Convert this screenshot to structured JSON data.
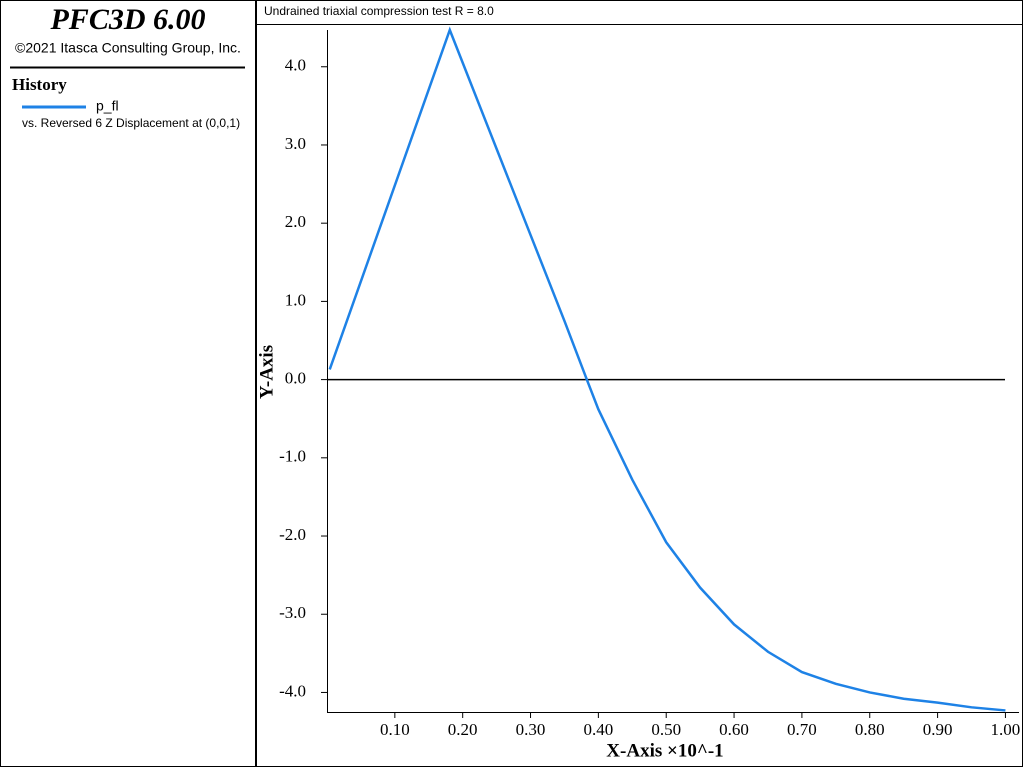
{
  "app": {
    "title": "PFC3D 6.00",
    "copyright": "©2021 Itasca Consulting Group, Inc.",
    "panel_heading": "History"
  },
  "chart_data": {
    "type": "line",
    "title": "Undrained triaxial compression test R = 8.0",
    "x_label": "X-Axis ×10^-1",
    "y_label": "Y-Axis",
    "legend_note": "vs. Reversed 6 Z Displacement at (0,0,1)",
    "x": [
      0.004,
      0.181,
      0.25,
      0.3,
      0.35,
      0.383,
      0.4,
      0.45,
      0.5,
      0.55,
      0.6,
      0.65,
      0.7,
      0.75,
      0.8,
      0.85,
      0.9,
      0.95,
      1.0
    ],
    "series": [
      {
        "name": "p_fl",
        "color": "#1e82e6",
        "values": [
          0.13,
          4.47,
          2.95,
          1.85,
          0.75,
          0.0,
          -0.38,
          -1.28,
          -2.08,
          -2.66,
          -3.13,
          -3.48,
          -3.74,
          -3.89,
          -4.0,
          -4.08,
          -4.13,
          -4.19,
          -4.23
        ]
      }
    ],
    "xlim": [
      0,
      1.02
    ],
    "ylim": [
      -4.25,
      4.47
    ],
    "xticks": [
      {
        "value": 0.1,
        "label": "0.10"
      },
      {
        "value": 0.2,
        "label": "0.20"
      },
      {
        "value": 0.3,
        "label": "0.30"
      },
      {
        "value": 0.4,
        "label": "0.40"
      },
      {
        "value": 0.5,
        "label": "0.50"
      },
      {
        "value": 0.6,
        "label": "0.60"
      },
      {
        "value": 0.7,
        "label": "0.70"
      },
      {
        "value": 0.8,
        "label": "0.80"
      },
      {
        "value": 0.9,
        "label": "0.90"
      },
      {
        "value": 1.0,
        "label": "1.00"
      }
    ],
    "yticks": [
      {
        "value": 4,
        "label": "4.0"
      },
      {
        "value": 3,
        "label": "3.0"
      },
      {
        "value": 2,
        "label": "2.0"
      },
      {
        "value": 1,
        "label": "1.0"
      },
      {
        "value": 0,
        "label": "0.0"
      },
      {
        "value": -1,
        "label": "-1.0"
      },
      {
        "value": -2,
        "label": "-2.0"
      },
      {
        "value": -3,
        "label": "-3.0"
      },
      {
        "value": -4,
        "label": "-4.0"
      }
    ],
    "zero_line": true
  }
}
